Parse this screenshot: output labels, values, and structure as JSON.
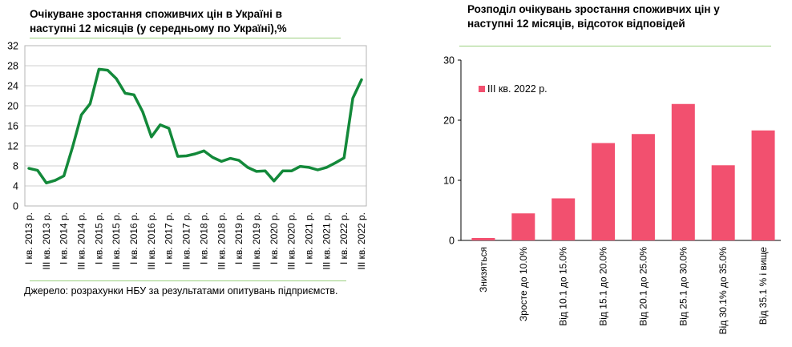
{
  "chart_data": [
    {
      "type": "line",
      "title": "Очікуване зростання споживчих цін в Україні в наступні 12 місяців (у середньому по Україні),%",
      "source": "Джерело: розрахунки НБУ за результатами опитувань підприємств.",
      "ylim": [
        0,
        32
      ],
      "yticks": [
        0,
        4,
        8,
        12,
        16,
        20,
        24,
        28,
        32
      ],
      "grid": true,
      "color": "#13893a",
      "x": [
        "I кв. 2013",
        "II",
        "III",
        "IV",
        "I 2014",
        "II",
        "III",
        "IV",
        "I 2015",
        "II",
        "III",
        "IV",
        "I 2016",
        "II",
        "III",
        "IV",
        "I 2017",
        "II",
        "III",
        "IV",
        "I 2018",
        "II",
        "III",
        "IV",
        "I 2019",
        "II",
        "III",
        "IV",
        "I 2020",
        "II",
        "III",
        "IV",
        "I 2021",
        "II",
        "III",
        "IV",
        "I 2022",
        "II",
        "III"
      ],
      "values": [
        7.5,
        7.1,
        4.6,
        5.1,
        6.0,
        11.8,
        18.2,
        20.4,
        27.3,
        27.1,
        25.4,
        22.5,
        22.2,
        18.8,
        13.8,
        16.2,
        15.5,
        9.9,
        10.0,
        10.4,
        11.0,
        9.7,
        8.9,
        9.5,
        9.1,
        7.7,
        6.9,
        7.0,
        5.0,
        7.0,
        7.0,
        7.9,
        7.7,
        7.2,
        7.7,
        8.6,
        9.6,
        21.5,
        25.2
      ],
      "tick_labels": [
        "I кв. 2013 р.",
        "III кв. 2013 р.",
        "I кв. 2014 р.",
        "III кв. 2014 р.",
        "I кв. 2015 р.",
        "III кв. 2015 р.",
        "I кв. 2016 р.",
        "III кв. 2016 р.",
        "I кв. 2017 р.",
        "III кв. 2017 р.",
        "I кв. 2018 р.",
        "III кв. 2018 р.",
        "I кв. 2019 р.",
        "III кв. 2019 р.",
        "I кв. 2020 р.",
        "III кв. 2020 р.",
        "I кв. 2021 р.",
        "III кв. 2021 р.",
        "I кв. 2022 р.",
        "III кв. 2022 р."
      ]
    },
    {
      "type": "bar",
      "title": "Розподіл очікувань зростання споживчих цін у наступні 12 місяців, відсоток відповідей",
      "ylim": [
        0,
        30
      ],
      "yticks": [
        0,
        10,
        20,
        30
      ],
      "grid": false,
      "legend_position": "top-left",
      "color": "#f2506f",
      "categories": [
        "Знизяться",
        "Зросте до 10.0%",
        "Від 10.1 до 15.0%",
        "Від 15.1 до 20.0%",
        "Від 20.1 до 25.0%",
        "Від 25.1 до 30.0%",
        "Від 30.1% до 35.0%",
        "Від 35.1 % і вище"
      ],
      "series": [
        {
          "name": "III кв. 2022 р.",
          "values": [
            0.4,
            4.5,
            7.0,
            16.2,
            17.7,
            22.7,
            12.5,
            18.3
          ]
        }
      ]
    }
  ]
}
